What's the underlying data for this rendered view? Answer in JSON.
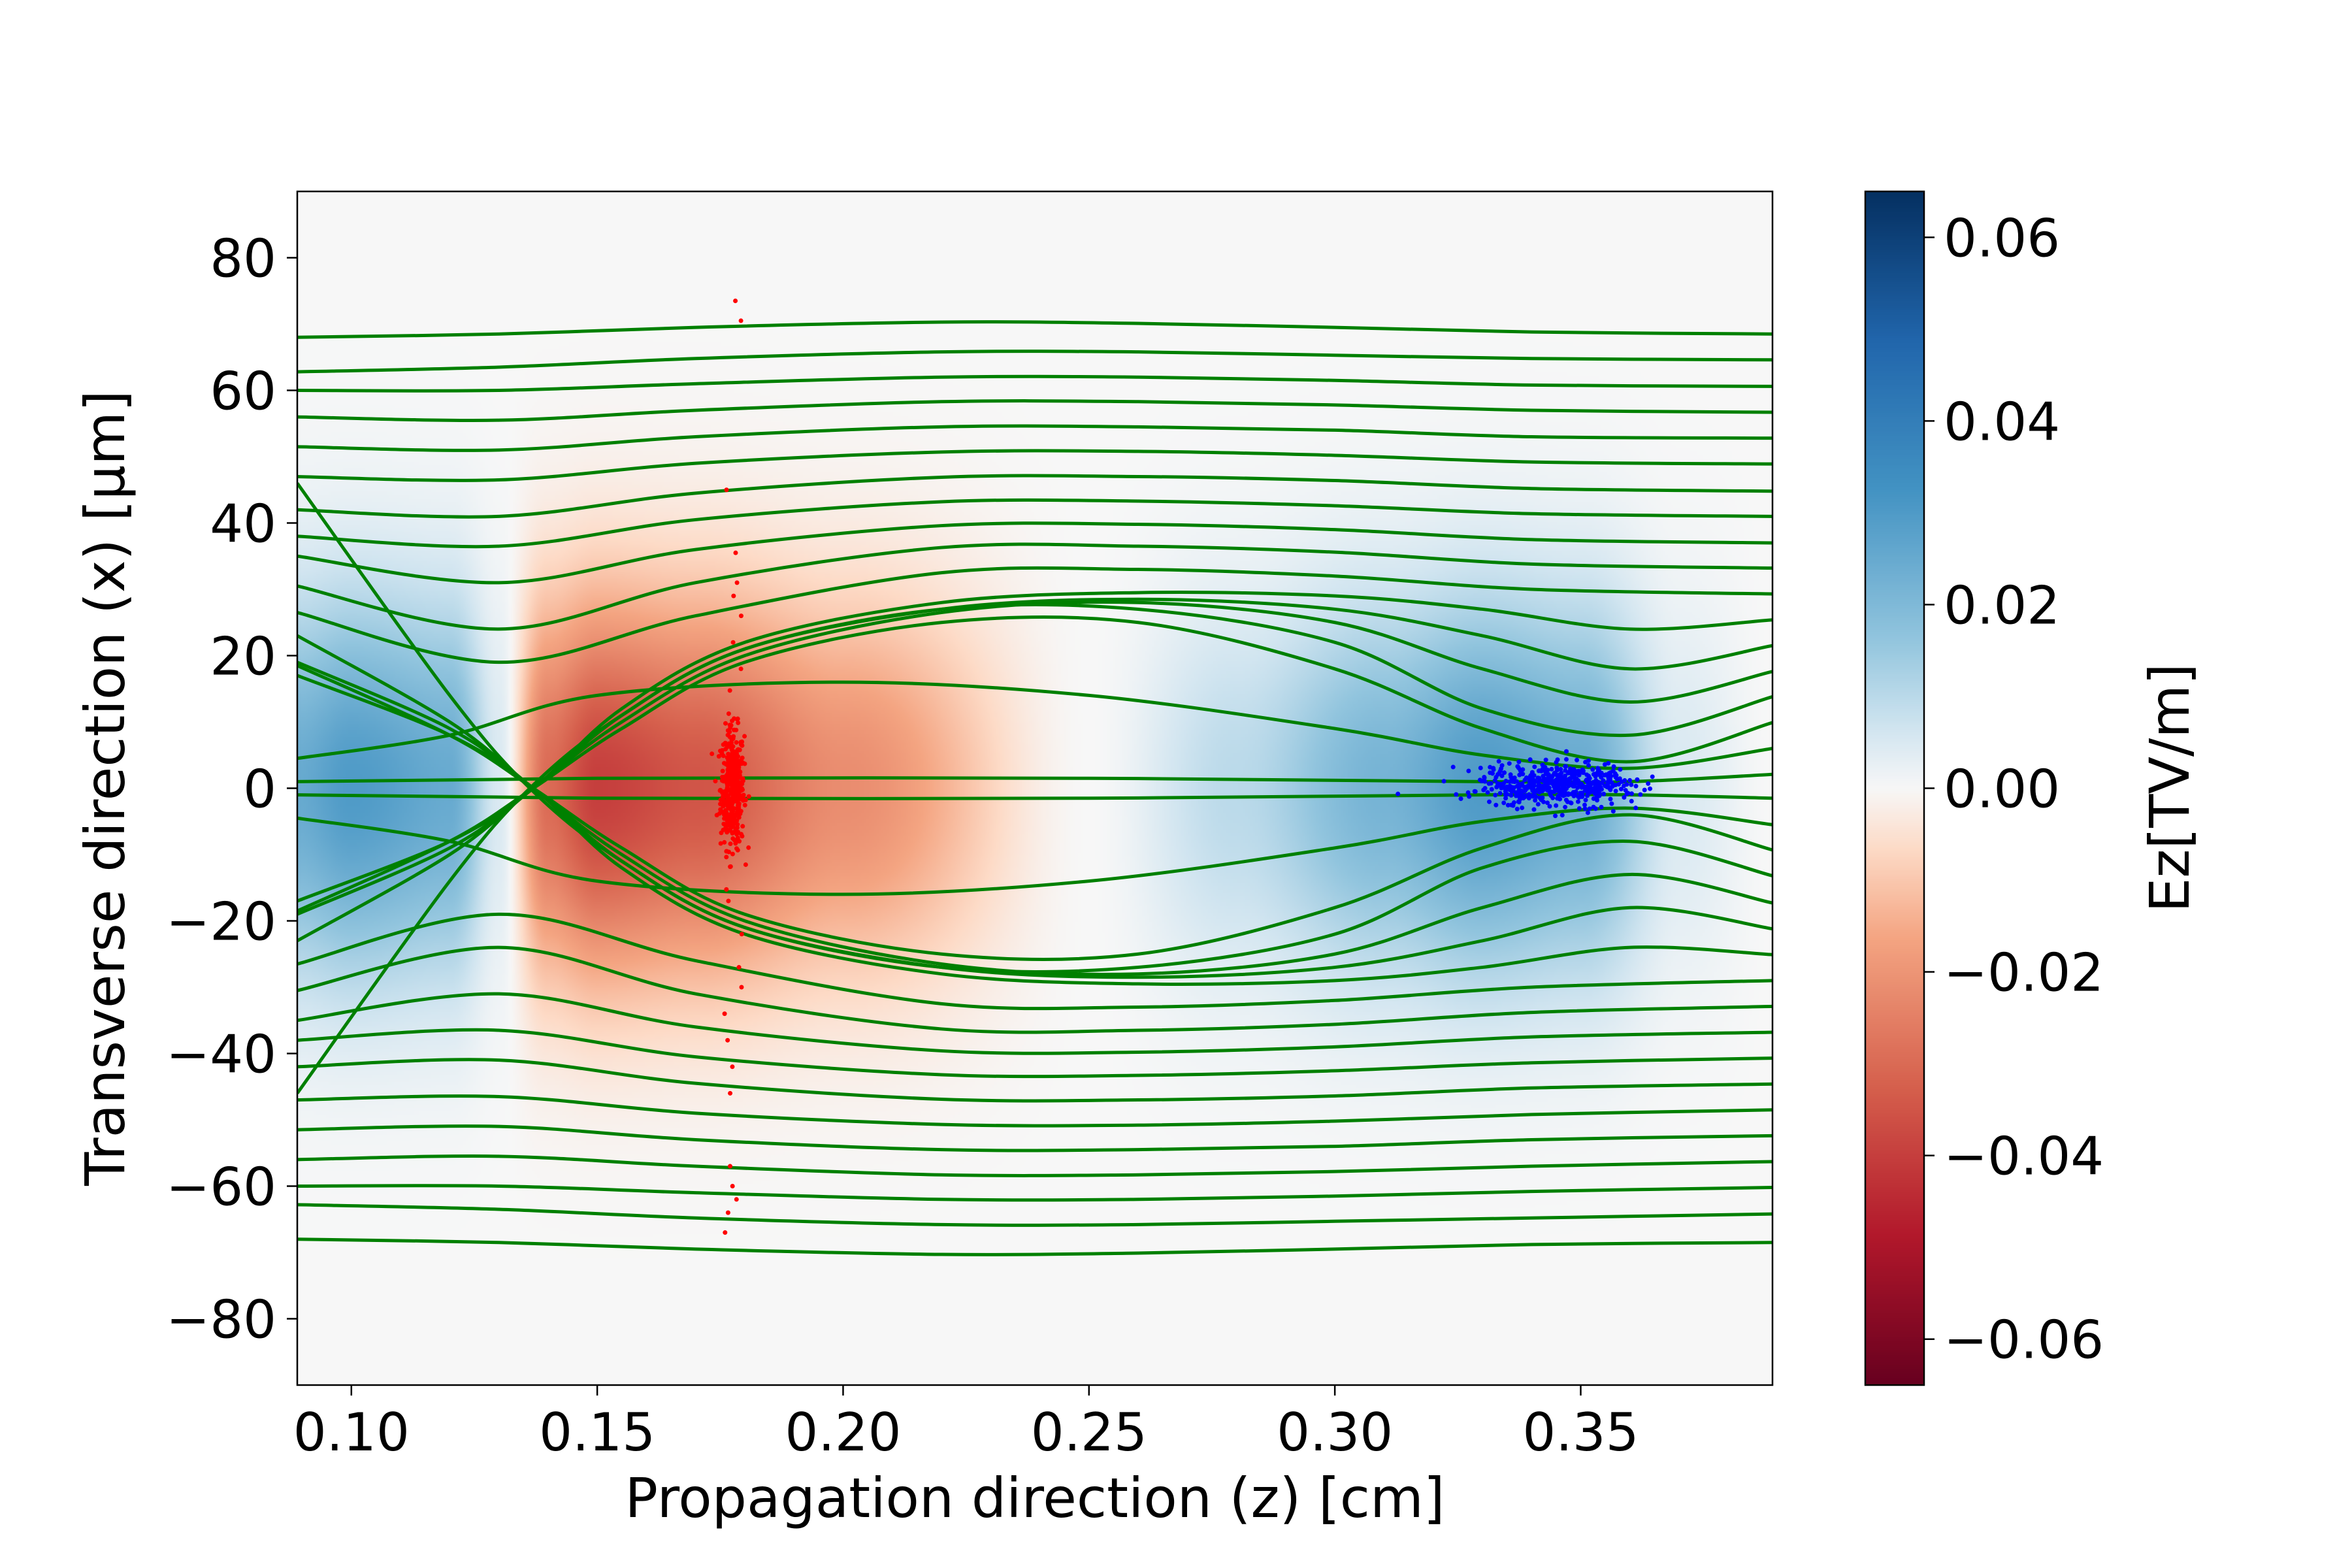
{
  "chart_data": {
    "type": "heatmap",
    "xlabel": "Propagation direction (z) [cm]",
    "ylabel": "Transverse direction (x) [μm]",
    "colorbar_label": "Ez[TV/m]",
    "xlim": [
      0.089,
      0.389
    ],
    "ylim": [
      -90,
      90
    ],
    "clim": [
      -0.065,
      0.065
    ],
    "colormap": "RdBu",
    "grid": false,
    "xticks": [
      "0.10",
      "0.15",
      "0.20",
      "0.25",
      "0.30",
      "0.35"
    ],
    "xtick_values": [
      0.1,
      0.15,
      0.2,
      0.25,
      0.3,
      0.35
    ],
    "yticks": [
      "80",
      "60",
      "40",
      "20",
      "0",
      "−20",
      "−40",
      "−60",
      "−80"
    ],
    "ytick_values": [
      80,
      60,
      40,
      20,
      0,
      -20,
      -40,
      -60,
      -80
    ],
    "cbar_ticks": [
      "0.06",
      "0.04",
      "0.02",
      "0.00",
      "−0.02",
      "−0.04",
      "−0.06"
    ],
    "cbar_tick_values": [
      0.06,
      0.04,
      0.02,
      0.0,
      -0.02,
      -0.04,
      -0.06
    ],
    "field_on_axis": {
      "z": [
        0.089,
        0.1,
        0.12,
        0.13,
        0.14,
        0.15,
        0.17,
        0.2,
        0.25,
        0.28,
        0.31,
        0.33,
        0.35,
        0.37,
        0.389
      ],
      "ez": [
        0.025,
        0.03,
        0.025,
        0.005,
        -0.03,
        -0.04,
        -0.035,
        -0.022,
        0.0,
        0.01,
        0.022,
        0.03,
        0.025,
        0.005,
        0.0
      ],
      "transverse_width_um": 28
    },
    "trajectory_color": "#008000",
    "trajectories": [
      {
        "z": [
          0.089,
          0.13,
          0.17,
          0.22,
          0.26,
          0.3,
          0.34,
          0.389
        ],
        "x": [
          68,
          68.5,
          69.5,
          70.3,
          70.1,
          69.5,
          68.8,
          68.5
        ]
      },
      {
        "z": [
          0.089,
          0.13,
          0.17,
          0.22,
          0.26,
          0.3,
          0.34,
          0.389
        ],
        "x": [
          62.8,
          63.5,
          64.8,
          65.8,
          65.8,
          65.3,
          64.8,
          64.6
        ]
      },
      {
        "z": [
          0.089,
          0.13,
          0.17,
          0.22,
          0.26,
          0.3,
          0.34,
          0.389
        ],
        "x": [
          60,
          60,
          61,
          62,
          62,
          61.5,
          60.8,
          60.6
        ]
      },
      {
        "z": [
          0.089,
          0.13,
          0.17,
          0.22,
          0.26,
          0.3,
          0.34,
          0.389
        ],
        "x": [
          56,
          55.5,
          57,
          58.3,
          58.3,
          57.8,
          57,
          56.7
        ]
      },
      {
        "z": [
          0.089,
          0.13,
          0.17,
          0.22,
          0.26,
          0.3,
          0.34,
          0.389
        ],
        "x": [
          51.5,
          51,
          53,
          54.5,
          54.5,
          54,
          53,
          52.8
        ]
      },
      {
        "z": [
          0.089,
          0.13,
          0.17,
          0.22,
          0.26,
          0.3,
          0.34,
          0.389
        ],
        "x": [
          47,
          46.5,
          49,
          50.7,
          50.8,
          50.2,
          49.2,
          48.9
        ]
      },
      {
        "z": [
          0.089,
          0.13,
          0.17,
          0.22,
          0.26,
          0.3,
          0.34,
          0.389
        ],
        "x": [
          42,
          41,
          44.5,
          46.9,
          47,
          46.4,
          45.2,
          44.8
        ]
      },
      {
        "z": [
          0.089,
          0.13,
          0.17,
          0.22,
          0.26,
          0.3,
          0.34,
          0.389
        ],
        "x": [
          38,
          36.5,
          40.5,
          43.2,
          43.3,
          42.6,
          41.4,
          41
        ]
      },
      {
        "z": [
          0.089,
          0.13,
          0.17,
          0.22,
          0.26,
          0.3,
          0.34,
          0.389
        ],
        "x": [
          35,
          31,
          36,
          39.6,
          39.8,
          39,
          37.5,
          37
        ]
      },
      {
        "z": [
          0.089,
          0.13,
          0.17,
          0.22,
          0.26,
          0.3,
          0.34,
          0.389
        ],
        "x": [
          30.5,
          24,
          31,
          36.3,
          36.5,
          35.6,
          33.8,
          33.2
        ]
      },
      {
        "z": [
          0.089,
          0.13,
          0.17,
          0.22,
          0.26,
          0.3,
          0.34,
          0.389
        ],
        "x": [
          26.5,
          19,
          26,
          32.5,
          33,
          32,
          30,
          29.3
        ]
      },
      {
        "z": [
          0.089,
          0.12,
          0.137,
          0.155,
          0.18,
          0.22,
          0.26,
          0.3,
          0.33,
          0.36,
          0.389
        ],
        "x": [
          -17,
          -8,
          0,
          12,
          22,
          28,
          29.5,
          29,
          27,
          24,
          25.4
        ]
      },
      {
        "z": [
          0.089,
          0.12,
          0.137,
          0.155,
          0.18,
          0.22,
          0.26,
          0.3,
          0.33,
          0.36,
          0.389
        ],
        "x": [
          -19,
          -9,
          0,
          11,
          21,
          27,
          28.5,
          27,
          23,
          18,
          21.5
        ]
      },
      {
        "z": [
          0.089,
          0.12,
          0.137,
          0.155,
          0.18,
          0.22,
          0.26,
          0.3,
          0.33,
          0.36,
          0.389
        ],
        "x": [
          -23,
          -10,
          0,
          10,
          20,
          26.5,
          28,
          25,
          18,
          13,
          17.6
        ]
      },
      {
        "z": [
          0.089,
          0.12,
          0.137,
          0.155,
          0.18,
          0.22,
          0.26,
          0.3,
          0.33,
          0.36,
          0.389
        ],
        "x": [
          -46,
          -14,
          0.5,
          11,
          21,
          27,
          27,
          22,
          12,
          8,
          13.8
        ]
      },
      {
        "z": [
          0.089,
          0.12,
          0.137,
          0.155,
          0.18,
          0.22,
          0.26,
          0.3,
          0.33,
          0.36,
          0.389
        ],
        "x": [
          -18.5,
          -8,
          0,
          9,
          19,
          25,
          25,
          18,
          9,
          4,
          9.9
        ]
      },
      {
        "z": [
          0.089,
          0.12,
          0.15,
          0.2,
          0.25,
          0.3,
          0.33,
          0.36,
          0.389
        ],
        "x": [
          4.5,
          8,
          14,
          16,
          14,
          9,
          5,
          3,
          6
        ]
      },
      {
        "z": [
          0.089,
          0.15,
          0.25,
          0.33,
          0.36,
          0.389
        ],
        "x": [
          1,
          1.5,
          1.5,
          1,
          1,
          2.1
        ]
      },
      {
        "z": [
          0.089,
          0.15,
          0.25,
          0.33,
          0.36,
          0.389
        ],
        "x": [
          -1,
          -1.5,
          -1.5,
          -1,
          -1,
          -1.5
        ]
      },
      {
        "z": [
          0.089,
          0.12,
          0.15,
          0.2,
          0.25,
          0.3,
          0.33,
          0.36,
          0.389
        ],
        "x": [
          -4.5,
          -8,
          -14,
          -16,
          -14,
          -9,
          -5,
          -3,
          -5.5
        ]
      },
      {
        "z": [
          0.089,
          0.12,
          0.137,
          0.155,
          0.18,
          0.22,
          0.26,
          0.3,
          0.33,
          0.36,
          0.389
        ],
        "x": [
          18.5,
          8,
          0,
          -9,
          -19,
          -25,
          -25,
          -18,
          -9,
          -4,
          -9.3
        ]
      },
      {
        "z": [
          0.089,
          0.12,
          0.137,
          0.155,
          0.18,
          0.22,
          0.26,
          0.3,
          0.33,
          0.36,
          0.389
        ],
        "x": [
          46,
          14,
          -0.5,
          -11,
          -21,
          -27,
          -27,
          -22,
          -12,
          -8,
          -13.2
        ]
      },
      {
        "z": [
          0.089,
          0.12,
          0.137,
          0.155,
          0.18,
          0.22,
          0.26,
          0.3,
          0.33,
          0.36,
          0.389
        ],
        "x": [
          23,
          10,
          0,
          -10,
          -20,
          -26.5,
          -28,
          -25,
          -18,
          -13,
          -17.3
        ]
      },
      {
        "z": [
          0.089,
          0.12,
          0.137,
          0.155,
          0.18,
          0.22,
          0.26,
          0.3,
          0.33,
          0.36,
          0.389
        ],
        "x": [
          19,
          9,
          0,
          -11,
          -21,
          -27,
          -28.5,
          -27,
          -23,
          -18,
          -21.2
        ]
      },
      {
        "z": [
          0.089,
          0.12,
          0.137,
          0.155,
          0.18,
          0.22,
          0.26,
          0.3,
          0.33,
          0.36,
          0.389
        ],
        "x": [
          17,
          8,
          0,
          -12,
          -22,
          -28,
          -29.5,
          -29,
          -27,
          -24,
          -25.1
        ]
      },
      {
        "z": [
          0.089,
          0.13,
          0.17,
          0.22,
          0.26,
          0.3,
          0.34,
          0.389
        ],
        "x": [
          -26.5,
          -19,
          -26,
          -32.5,
          -33,
          -32,
          -30,
          -29
        ]
      },
      {
        "z": [
          0.089,
          0.13,
          0.17,
          0.22,
          0.26,
          0.3,
          0.34,
          0.389
        ],
        "x": [
          -30.5,
          -24,
          -31,
          -36.3,
          -36.5,
          -35.6,
          -33.8,
          -32.9
        ]
      },
      {
        "z": [
          0.089,
          0.13,
          0.17,
          0.22,
          0.26,
          0.3,
          0.34,
          0.389
        ],
        "x": [
          -35,
          -31,
          -36,
          -39.6,
          -39.8,
          -39,
          -37.5,
          -36.8
        ]
      },
      {
        "z": [
          0.089,
          0.13,
          0.17,
          0.22,
          0.26,
          0.3,
          0.34,
          0.389
        ],
        "x": [
          -38,
          -36.5,
          -40.5,
          -43.2,
          -43.3,
          -42.6,
          -41.4,
          -40.7
        ]
      },
      {
        "z": [
          0.089,
          0.13,
          0.17,
          0.22,
          0.26,
          0.3,
          0.34,
          0.389
        ],
        "x": [
          -42,
          -41,
          -44.5,
          -46.9,
          -47,
          -46.4,
          -45.2,
          -44.6
        ]
      },
      {
        "z": [
          0.089,
          0.13,
          0.17,
          0.22,
          0.26,
          0.3,
          0.34,
          0.389
        ],
        "x": [
          -47,
          -46.5,
          -49,
          -50.7,
          -50.8,
          -50.2,
          -49.2,
          -48.5
        ]
      },
      {
        "z": [
          0.089,
          0.13,
          0.17,
          0.22,
          0.26,
          0.3,
          0.34,
          0.389
        ],
        "x": [
          -51.5,
          -51,
          -53,
          -54.5,
          -54.5,
          -54,
          -53,
          -52.4
        ]
      },
      {
        "z": [
          0.089,
          0.13,
          0.17,
          0.22,
          0.26,
          0.3,
          0.34,
          0.389
        ],
        "x": [
          -56,
          -55.5,
          -57,
          -58.3,
          -58.3,
          -57.8,
          -57,
          -56.3
        ]
      },
      {
        "z": [
          0.089,
          0.13,
          0.17,
          0.22,
          0.26,
          0.3,
          0.34,
          0.389
        ],
        "x": [
          -60,
          -60,
          -61,
          -62,
          -62,
          -61.5,
          -60.8,
          -60.2
        ]
      },
      {
        "z": [
          0.089,
          0.13,
          0.17,
          0.22,
          0.26,
          0.3,
          0.34,
          0.389
        ],
        "x": [
          -62.8,
          -63.5,
          -64.8,
          -65.8,
          -65.8,
          -65.3,
          -64.8,
          -64.2
        ]
      },
      {
        "z": [
          0.089,
          0.13,
          0.17,
          0.22,
          0.26,
          0.3,
          0.34,
          0.389
        ],
        "x": [
          -68,
          -68.5,
          -69.5,
          -70.3,
          -70.1,
          -69.5,
          -68.8,
          -68.5
        ]
      }
    ],
    "bunches": [
      {
        "color": "#ff0000",
        "z_center": 0.1775,
        "z_spread": 0.0012,
        "x_center": 0,
        "x_spread": 4.5,
        "count": 420,
        "halo_x": [
          73.5,
          70.5,
          45,
          35.5,
          31,
          29,
          26,
          22,
          18,
          -17,
          -22,
          -27,
          -30,
          -34,
          -38,
          -42,
          -46,
          -57,
          -60,
          -62,
          -64,
          -67
        ]
      },
      {
        "color": "#0000ff",
        "z_center": 0.345,
        "z_spread": 0.008,
        "x_center": 0.5,
        "x_spread": 1.6,
        "count": 520
      }
    ]
  }
}
